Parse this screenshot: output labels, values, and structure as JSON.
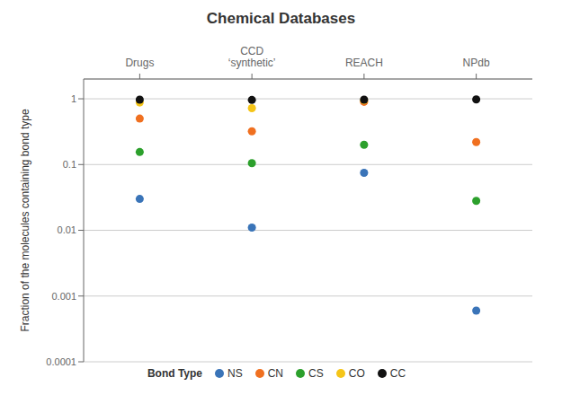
{
  "chart_data": {
    "type": "scatter",
    "title": "Chemical Databases",
    "ylabel": "Fraction of the molecules containing bond type",
    "legend_title": "Bond Type",
    "categories": [
      "Drugs",
      "CCD\n‘synthetic’",
      "REACH",
      "NPdb"
    ],
    "series": [
      {
        "name": "NS",
        "color": "#3a74b8",
        "values": [
          0.03,
          0.011,
          0.075,
          0.0006
        ]
      },
      {
        "name": "CN",
        "color": "#f07020",
        "values": [
          0.5,
          0.32,
          0.9,
          0.22
        ]
      },
      {
        "name": "CS",
        "color": "#2ca02c",
        "values": [
          0.155,
          0.105,
          0.2,
          0.028
        ]
      },
      {
        "name": "CO",
        "color": "#f5c518",
        "values": [
          0.88,
          0.72,
          0.95,
          null
        ]
      },
      {
        "name": "CC",
        "color": "#111111",
        "values": [
          0.97,
          0.96,
          0.97,
          0.98
        ]
      }
    ],
    "ylim": [
      0.0001,
      2.0
    ],
    "yticks": [
      0.0001,
      0.001,
      0.01,
      0.1,
      1
    ],
    "log": "y",
    "grid": true,
    "legend": "bottom",
    "marker": "circle"
  }
}
